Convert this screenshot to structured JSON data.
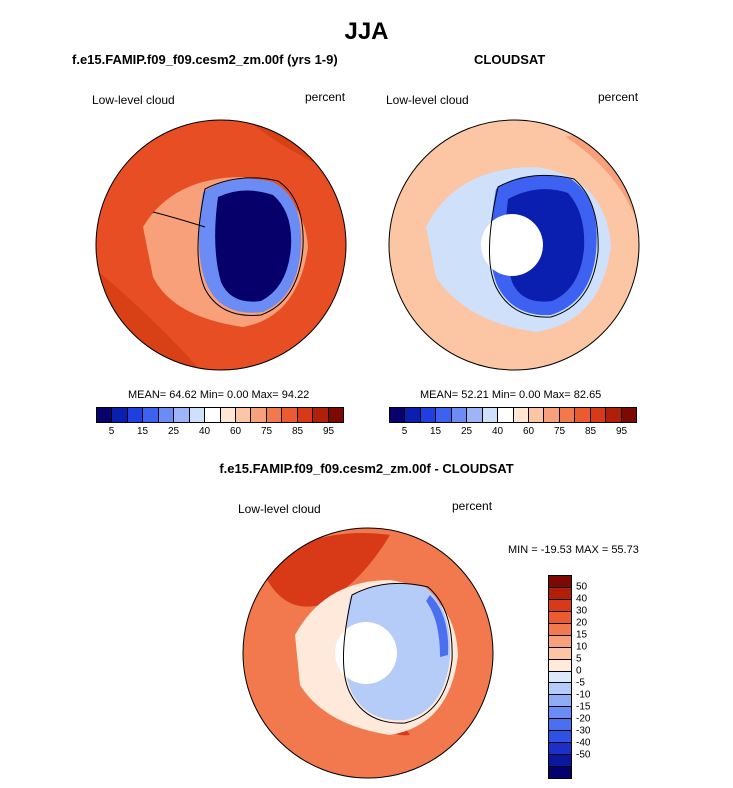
{
  "title": "JJA",
  "panels": {
    "model": {
      "title": "f.e15.FAMIP.f09_f09.cesm2_zm.00f (yrs 1-9)",
      "variable": "Low-level cloud",
      "units": "percent",
      "stats": "MEAN= 64.62  Min=   0.00  Max= 94.22"
    },
    "obs": {
      "title": "CLOUDSAT",
      "variable": "Low-level cloud",
      "units": "percent",
      "stats": "MEAN= 52.21  Min=   0.00  Max= 82.65"
    },
    "diff": {
      "title": "f.e15.FAMIP.f09_f09.cesm2_zm.00f - CLOUDSAT",
      "variable": "Low-level cloud",
      "units": "percent",
      "stats": "MIN = -19.53 MAX =  55.73"
    }
  },
  "colorbar_abs": {
    "colors": [
      "#08006b",
      "#0a1fb0",
      "#1f3fe0",
      "#3d62f2",
      "#6b8cf5",
      "#9db5f8",
      "#cfe0fb",
      "#ffffff",
      "#ffe5d2",
      "#fcc5a3",
      "#f7a07a",
      "#f2794e",
      "#ec5a30",
      "#d83a18",
      "#b21f08",
      "#7d0a02"
    ],
    "labels": [
      "5",
      "15",
      "25",
      "40",
      "60",
      "75",
      "85",
      "95"
    ]
  },
  "colorbar_diff": {
    "colors": [
      "#7d0a02",
      "#b21f08",
      "#d83a18",
      "#ec5a30",
      "#f2794e",
      "#f7a07a",
      "#fcc5a3",
      "#ffe9da",
      "#dce9fb",
      "#b5ccf8",
      "#8fadf5",
      "#6b8cf5",
      "#4a70ef",
      "#2e52e5",
      "#1a30c8",
      "#0a18a0",
      "#050070"
    ],
    "labels": [
      "50",
      "40",
      "30",
      "20",
      "15",
      "10",
      "5",
      "0",
      "-5",
      "-10",
      "-15",
      "-20",
      "-30",
      "-40",
      "-50"
    ]
  },
  "maps": {
    "model_colors": {
      "ocean": "#e84e23",
      "ocean_band": "#d84016",
      "coastal": "#f7a07a",
      "ice": "#ffffff",
      "land_edge": "#6b8cf5",
      "land_core": "#06006a"
    },
    "obs_colors": {
      "ocean": "#fcc5a3",
      "ocean_band": "#f7a07a",
      "coastal": "#cfe0fb",
      "land_edge": "#3d62f2",
      "land_core": "#0a1fb0",
      "missing": "#ffffff"
    },
    "diff_colors": {
      "ocean": "#f2794e",
      "ocean_band": "#d83a18",
      "coastal": "#ffe9da",
      "land": "#b5ccf8",
      "land_edge": "#4a70ef",
      "missing": "#ffffff"
    }
  }
}
